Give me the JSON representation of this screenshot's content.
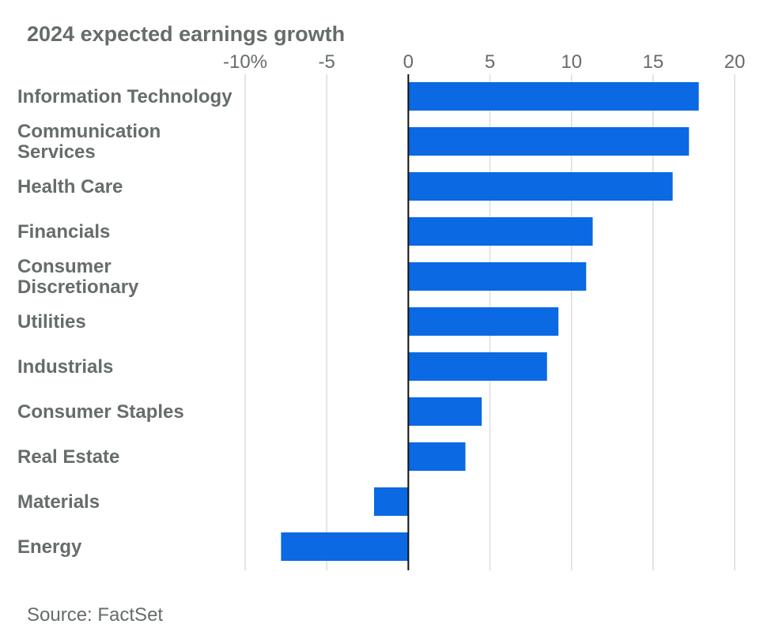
{
  "chart_data": {
    "type": "bar",
    "orientation": "horizontal",
    "title": "2024 expected earnings growth",
    "xlabel": "",
    "ylabel": "",
    "xlim": [
      -10,
      20
    ],
    "xticks": [
      -10,
      -5,
      0,
      5,
      10,
      15,
      20
    ],
    "xtick_labels": [
      "-10%",
      "-5",
      "0",
      "5",
      "10",
      "15",
      "20"
    ],
    "grid": true,
    "categories": [
      [
        "Information Technology"
      ],
      [
        "Communication",
        "Services"
      ],
      [
        "Health Care"
      ],
      [
        "Financials"
      ],
      [
        "Consumer",
        "Discretionary"
      ],
      [
        "Utilities"
      ],
      [
        "Industrials"
      ],
      [
        "Consumer Staples"
      ],
      [
        "Real Estate"
      ],
      [
        "Materials"
      ],
      [
        "Energy"
      ]
    ],
    "values": [
      17.8,
      17.2,
      16.2,
      11.3,
      10.9,
      9.2,
      8.5,
      4.5,
      3.5,
      -2.1,
      -7.8
    ],
    "bar_color": "#0a69e3",
    "source": "Source: FactSet"
  }
}
